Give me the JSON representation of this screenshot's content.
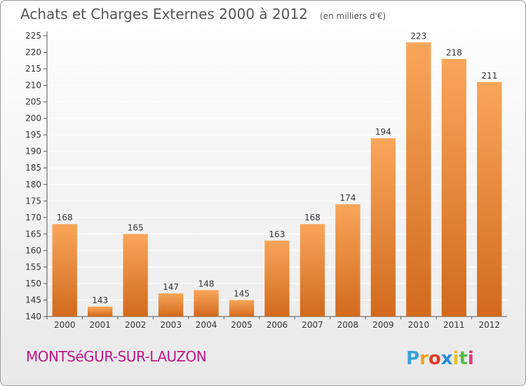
{
  "chart_data": {
    "type": "bar",
    "title": "Achats et Charges Externes 2000 à 2012",
    "subtitle": "(en milliers d'€)",
    "categories": [
      "2000",
      "2001",
      "2002",
      "2003",
      "2004",
      "2005",
      "2006",
      "2007",
      "2008",
      "2009",
      "2010",
      "2011",
      "2012"
    ],
    "values": [
      168,
      143,
      165,
      147,
      148,
      145,
      163,
      168,
      174,
      194,
      223,
      218,
      211
    ],
    "ylim": [
      140,
      225
    ],
    "yticks": [
      140,
      145,
      150,
      155,
      160,
      165,
      170,
      175,
      180,
      185,
      190,
      195,
      200,
      205,
      210,
      215,
      220,
      225
    ],
    "grid": true,
    "xlabel": "",
    "ylabel": "",
    "colors": {
      "bar_top": "#f9a65a",
      "bar_bottom": "#d26a1c",
      "grid": "#ffffff"
    }
  },
  "footer": {
    "place": "MONTSéGUR-SUR-LAUZON"
  },
  "brand": {
    "letters": [
      "P",
      "r",
      "o",
      "x",
      "i",
      "t",
      "i"
    ],
    "colors": [
      "#3aa0d8",
      "#f0a020",
      "#e03a2a",
      "#2a8ad8",
      "#e8c020",
      "#5ab848",
      "#e03a7a"
    ]
  }
}
